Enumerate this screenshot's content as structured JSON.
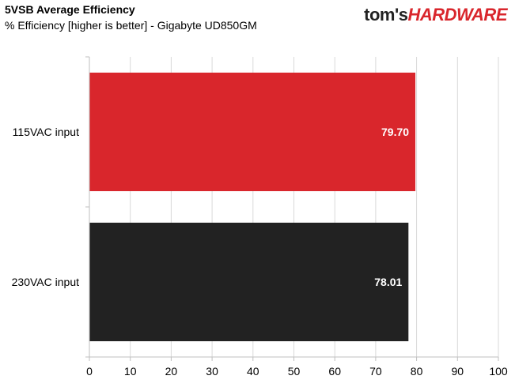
{
  "header": {
    "title": "5VSB Average Efficiency",
    "subtitle": "% Efficiency [higher is better] - Gigabyte UD850GM"
  },
  "logo": {
    "part1": "tom's",
    "part2": "HARDWARE"
  },
  "colors": {
    "bar_115": "#d9262c",
    "bar_230": "#222222",
    "grid": "#d9d9d9",
    "axis": "#bfbfbf",
    "label_text": "#ffffff"
  },
  "chart_data": {
    "type": "bar",
    "orientation": "horizontal",
    "categories": [
      "115VAC input",
      "230VAC input"
    ],
    "values": [
      79.7,
      78.01
    ],
    "value_labels": [
      "79.70",
      "78.01"
    ],
    "title": "5VSB Average Efficiency",
    "subtitle": "% Efficiency [higher is better] - Gigabyte UD850GM",
    "xlim": [
      0,
      100
    ],
    "xticks": [
      0,
      10,
      20,
      30,
      40,
      50,
      60,
      70,
      80,
      90,
      100
    ],
    "grid": true,
    "legend": "none"
  }
}
